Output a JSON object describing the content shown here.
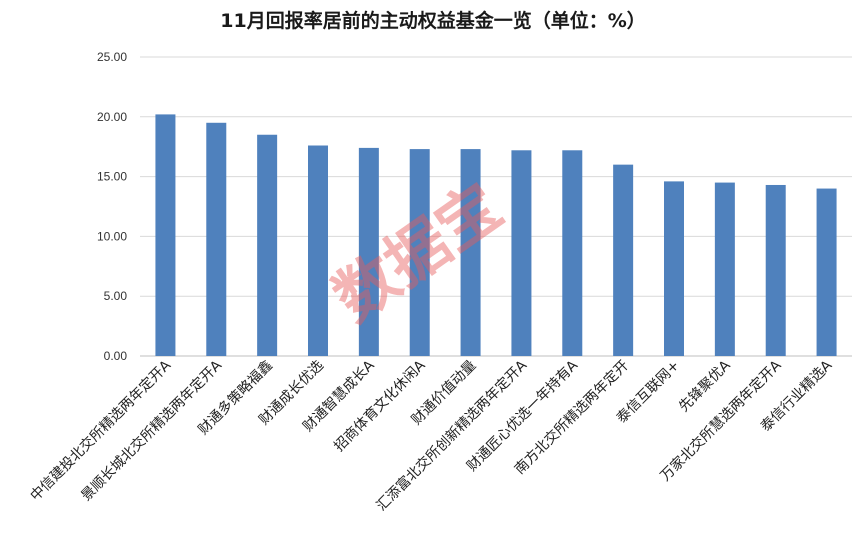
{
  "chart_data": {
    "type": "bar",
    "title": "11月回报率居前的主动权益基金一览（单位：%）",
    "xlabel": "",
    "ylabel": "",
    "ylim": [
      0,
      25
    ],
    "yticks": [
      "0.00",
      "5.00",
      "10.00",
      "15.00",
      "20.00",
      "25.00"
    ],
    "grid": true,
    "legend": "none",
    "bar_color": "#4f81bd",
    "categories": [
      "中信建投北交所精选两年定开A",
      "景顺长城北交所精选两年定开A",
      "财通多策略福鑫",
      "财通成长优选",
      "财通智慧成长A",
      "招商体育文化休闲A",
      "财通价值动量",
      "汇添富北交所创新精选两年定开A",
      "财通匠心优选一年持有A",
      "南方北交所精选两年定开",
      "泰信互联网+",
      "先锋聚优A",
      "万家北交所慧选两年定开A",
      "泰信行业精选A"
    ],
    "values": [
      20.2,
      19.5,
      18.5,
      17.6,
      17.4,
      17.3,
      17.3,
      17.2,
      17.2,
      16.0,
      14.6,
      14.5,
      14.3,
      14.0
    ]
  },
  "watermark": "数据宝"
}
